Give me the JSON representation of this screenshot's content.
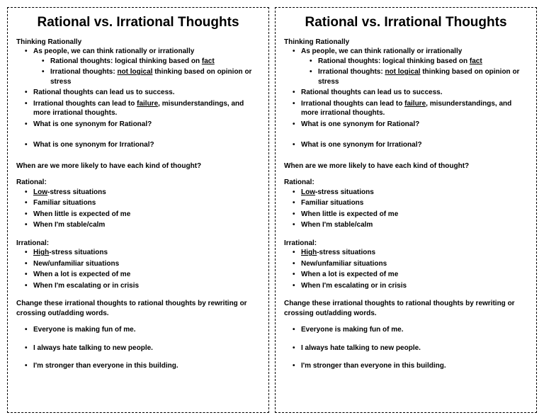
{
  "title": "Rational vs. Irrational Thoughts",
  "section1_heading": "Thinking Rationally",
  "s1_item1": "As people, we can think rationally or irrationally",
  "s1_sub1_pre": "Rational thoughts: logical thinking based on ",
  "s1_sub1_u": "fact",
  "s1_sub2_pre": "Irrational thoughts: ",
  "s1_sub2_u": "not logical",
  "s1_sub2_post": " thinking based on opinion or stress",
  "s1_item2": "Rational thoughts can lead us to success.",
  "s1_item3_pre": "Irrational thoughts can lead to ",
  "s1_item3_u": "failure",
  "s1_item3_post": ", misunderstandings, and more irrational thoughts.",
  "s1_item4": "What is one synonym for Rational?",
  "s1_item5": "What is one synonym for Irrational?",
  "section2_heading": "When are we more likely to have each kind of thought?",
  "rational_heading": "Rational:",
  "r1_u": "Low",
  "r1_post": "-stress situations",
  "r2": "Familiar situations",
  "r3": "When little is expected of me",
  "r4": "When I'm stable/calm",
  "irrational_heading": "Irrational:",
  "i1_u": "High",
  "i1_post": "-stress situations",
  "i2": "New/unfamiliar situations",
  "i3": "When a lot is expected of me",
  "i4": "When I'm escalating or in crisis",
  "section3_heading": "Change these irrational thoughts to rational thoughts by rewriting or crossing out/adding words.",
  "ex1": "Everyone is making fun of me.",
  "ex2": "I always hate talking to new people.",
  "ex3": "I'm stronger than everyone in this building."
}
